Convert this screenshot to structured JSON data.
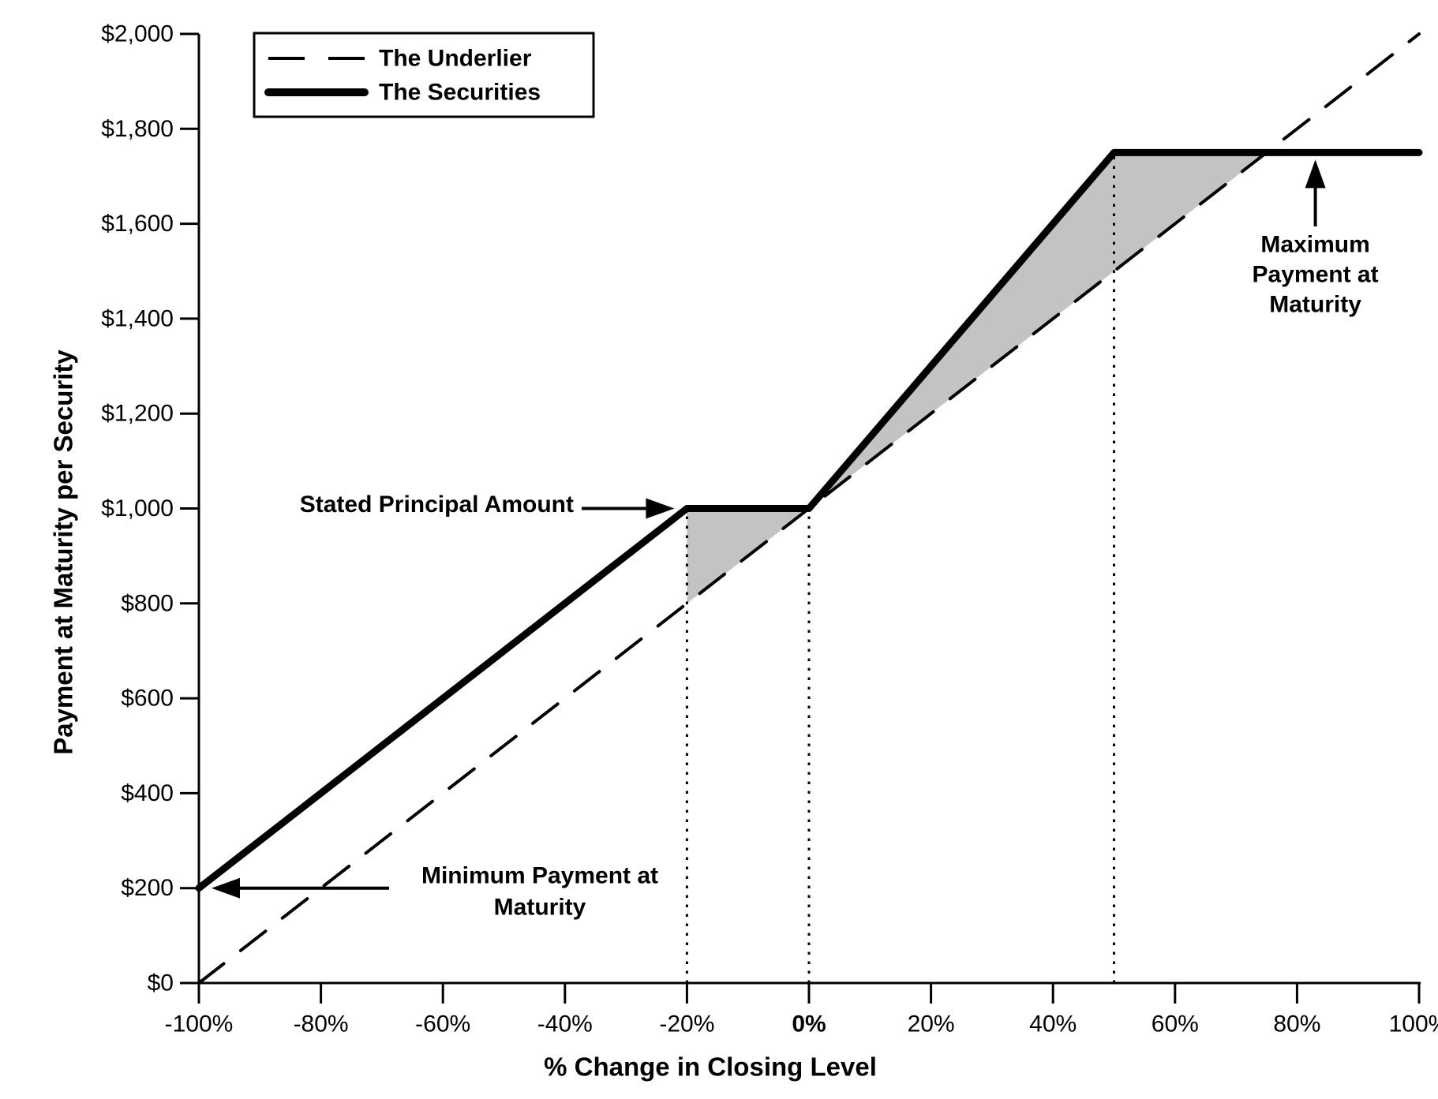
{
  "chart_data": {
    "type": "line",
    "title": "",
    "xlabel": "% Change in Closing Level",
    "ylabel": "Payment at Maturity per Security",
    "xlim": [
      -100,
      100
    ],
    "ylim": [
      0,
      2000
    ],
    "grid": false,
    "legend_position": "top-left",
    "x_ticks": [
      -100,
      -80,
      -60,
      -40,
      -20,
      0,
      20,
      40,
      60,
      80,
      100
    ],
    "x_tick_labels": [
      "-100%",
      "-80%",
      "-60%",
      "-40%",
      "-20%",
      "0%",
      "20%",
      "40%",
      "60%",
      "80%",
      "100%"
    ],
    "emphasized_x_tick_label": "0%",
    "y_ticks": [
      0,
      200,
      400,
      600,
      800,
      1000,
      1200,
      1400,
      1600,
      1800,
      2000
    ],
    "y_tick_labels": [
      "$0",
      "$200",
      "$400",
      "$600",
      "$800",
      "$1,000",
      "$1,200",
      "$1,400",
      "$1,600",
      "$1,800",
      "$2,000"
    ],
    "series": [
      {
        "name": "The Underlier",
        "style": "dashed",
        "color": "#000000",
        "points": [
          [
            -100,
            0
          ],
          [
            100,
            2000
          ]
        ]
      },
      {
        "name": "The Securities",
        "style": "solid",
        "color": "#000000",
        "points": [
          [
            -100,
            200
          ],
          [
            -20,
            1000
          ],
          [
            0,
            1000
          ],
          [
            50,
            1750
          ],
          [
            100,
            1750
          ]
        ]
      }
    ],
    "shaded_regions": [
      {
        "description": "buffer region between securities flat line and underlier, -20% to 0%",
        "fill": "#c3c3c3",
        "points": [
          [
            -20,
            1000
          ],
          [
            0,
            1000
          ],
          [
            -20,
            800
          ]
        ]
      },
      {
        "description": "leveraged upside region between securities and underlier, 0% to 75%",
        "fill": "#c3c3c3",
        "points": [
          [
            0,
            1000
          ],
          [
            50,
            1750
          ],
          [
            75,
            1750
          ]
        ]
      }
    ],
    "dotted_guides": [
      {
        "x": -20,
        "y_top": 1000
      },
      {
        "x": 0,
        "y_top": 1000
      },
      {
        "x": 50,
        "y_top": 1750
      }
    ],
    "annotations": [
      {
        "id": "stated-principal",
        "text_lines": [
          "Stated Principal Amount"
        ],
        "arrow_direction": "right",
        "target_point": [
          -20,
          1000
        ]
      },
      {
        "id": "minimum-payment",
        "text_lines": [
          "Minimum Payment at",
          "Maturity"
        ],
        "arrow_direction": "left",
        "target_point": [
          -100,
          200
        ]
      },
      {
        "id": "maximum-payment",
        "text_lines": [
          "Maximum",
          "Payment at",
          "Maturity"
        ],
        "arrow_direction": "up",
        "target_point": [
          83,
          1750
        ]
      }
    ],
    "key_values": {
      "minimum_payment": 200,
      "stated_principal": 1000,
      "maximum_payment": 1750,
      "buffer_percent": -20,
      "cap_percent": 50
    },
    "colors": {
      "line": "#000000",
      "shade": "#c3c3c3",
      "background": "#ffffff"
    }
  }
}
